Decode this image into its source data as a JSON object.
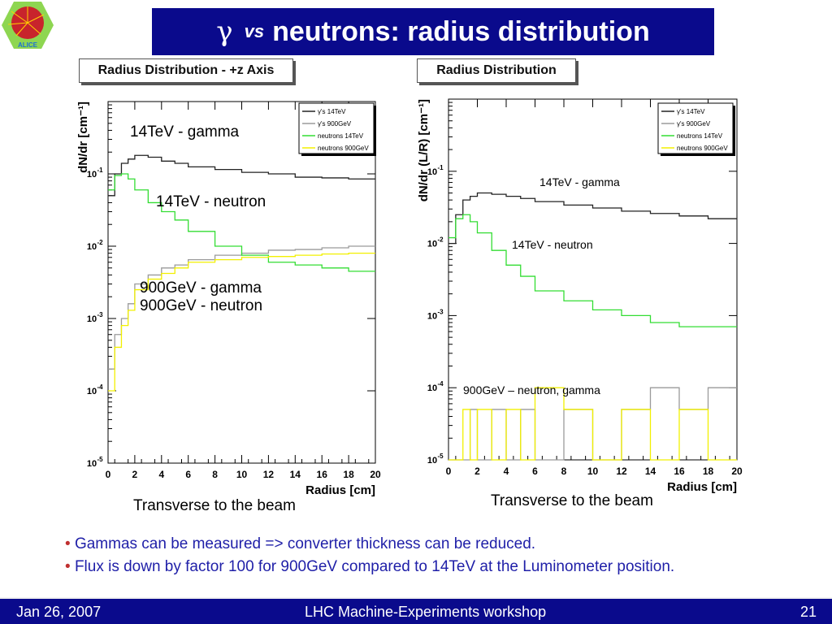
{
  "logo": {
    "text": "ALICE"
  },
  "title": {
    "gamma": "γ",
    "vs": "vs",
    "main": "neutrons: radius distribution"
  },
  "plots": [
    {
      "box_title": "Radius Distribution - +z Axis",
      "ylabel": "dN/dr [cm⁻¹]",
      "xlabel": "Radius [cm]",
      "caption": "Transverse to the beam",
      "annotations": [
        "14TeV - gamma",
        "14TeV - neutron",
        "900GeV - gamma",
        "900GeV - neutron"
      ]
    },
    {
      "box_title": "Radius Distribution",
      "ylabel": "dN/dr (L/R) [cm⁻¹]",
      "xlabel": "Radius [cm]",
      "caption": "Transverse to the beam",
      "annotations": [
        "14TeV - gamma",
        "14TeV - neutron",
        "900GeV – neutron, gamma"
      ]
    }
  ],
  "legend": [
    "γ's 14TeV",
    "γ's 900GeV",
    "neutrons 14TeV",
    "neutrons 900GeV"
  ],
  "colors": {
    "gamma14": "#222222",
    "gamma900": "#9a9a9a",
    "neutron14": "#33dd33",
    "neutron900": "#f2f000",
    "navy": "#0a0a8c"
  },
  "chart_data": [
    {
      "type": "line",
      "title": "Radius Distribution - +z Axis",
      "xlabel": "Radius [cm]",
      "ylabel": "dN/dr [cm-1]",
      "xlim": [
        0,
        20
      ],
      "ylim": [
        1e-05,
        1
      ],
      "yscale": "log",
      "x": [
        0.5,
        1,
        1.5,
        2,
        3,
        4,
        5,
        6,
        8,
        10,
        12,
        14,
        16,
        18,
        20
      ],
      "series": [
        {
          "name": "γ's 14TeV",
          "values": [
            0.05,
            0.1,
            0.14,
            0.16,
            0.18,
            0.17,
            0.15,
            0.14,
            0.125,
            0.115,
            0.105,
            0.1,
            0.09,
            0.088,
            0.085
          ]
        },
        {
          "name": "γ's 900GeV",
          "values": [
            0.0002,
            0.0006,
            0.001,
            0.0016,
            0.003,
            0.004,
            0.005,
            0.0055,
            0.0065,
            0.0075,
            0.008,
            0.0088,
            0.009,
            0.0095,
            0.01
          ]
        },
        {
          "name": "neutrons 14TeV",
          "values": [
            0.06,
            0.095,
            0.1,
            0.085,
            0.06,
            0.04,
            0.03,
            0.023,
            0.016,
            0.01,
            0.0075,
            0.006,
            0.0055,
            0.005,
            0.0045
          ]
        },
        {
          "name": "neutrons 900GeV",
          "values": [
            0.0001,
            0.0004,
            0.0008,
            0.0013,
            0.0025,
            0.0035,
            0.0042,
            0.005,
            0.006,
            0.0065,
            0.007,
            0.0072,
            0.0075,
            0.0078,
            0.008
          ]
        }
      ],
      "legend_position": "top-right"
    },
    {
      "type": "line",
      "title": "Radius Distribution",
      "xlabel": "Radius [cm]",
      "ylabel": "dN/dr (L/R) [cm-1]",
      "xlim": [
        0,
        20
      ],
      "ylim": [
        1e-05,
        1
      ],
      "yscale": "log",
      "x": [
        0.5,
        1,
        1.5,
        2,
        3,
        4,
        5,
        6,
        8,
        10,
        12,
        14,
        16,
        18,
        20
      ],
      "series": [
        {
          "name": "γ's 14TeV",
          "values": [
            0.01,
            0.025,
            0.04,
            0.045,
            0.05,
            0.048,
            0.045,
            0.042,
            0.038,
            0.034,
            0.031,
            0.028,
            0.026,
            0.024,
            0.022
          ]
        },
        {
          "name": "γ's 900GeV",
          "values": [
            1e-05,
            1e-05,
            1e-05,
            5e-05,
            1e-05,
            5e-05,
            1e-05,
            5e-05,
            1e-05,
            5e-05,
            1e-05,
            5e-05,
            0.0001,
            5e-05,
            0.0001
          ]
        },
        {
          "name": "neutrons 14TeV",
          "values": [
            0.012,
            0.022,
            0.025,
            0.02,
            0.014,
            0.008,
            0.005,
            0.0035,
            0.0022,
            0.0016,
            0.0012,
            0.001,
            0.0008,
            0.0007,
            0.0007
          ]
        },
        {
          "name": "neutrons 900GeV",
          "values": [
            1e-05,
            1e-05,
            5e-05,
            1e-05,
            5e-05,
            1e-05,
            5e-05,
            1e-05,
            0.0001,
            5e-05,
            1e-05,
            5e-05,
            1e-05,
            5e-05,
            1e-05
          ]
        }
      ],
      "legend_position": "top-right"
    }
  ],
  "axis": {
    "xticks": [
      "0",
      "2",
      "4",
      "6",
      "8",
      "10",
      "12",
      "14",
      "16",
      "18",
      "20"
    ],
    "ytick_mantissa": "10",
    "ytick_exponents": [
      "-5",
      "-4",
      "-3",
      "-2",
      "-1"
    ]
  },
  "bullets": [
    "Gammas can be measured => converter thickness can be reduced.",
    "Flux is down by factor 100 for 900GeV compared to 14TeV at the Luminometer position."
  ],
  "footer": {
    "date": "Jan 26, 2007",
    "event": "LHC Machine-Experiments workshop",
    "page": "21"
  }
}
